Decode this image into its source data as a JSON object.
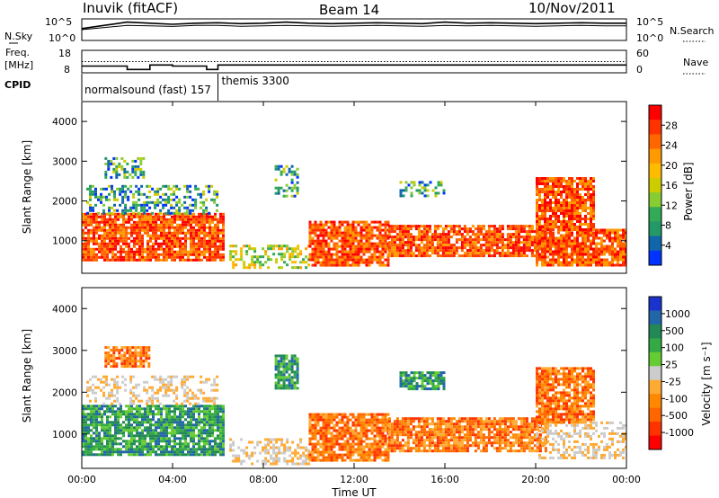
{
  "header": {
    "station": "Inuvik (fitACF)",
    "beam": "Beam 14",
    "date": "10/Nov/2011"
  },
  "chart_data": [
    {
      "type": "line",
      "name": "noise-panel",
      "left_label": "N.Sky",
      "right_label": "N.Search",
      "left_ticks": [
        "10^5",
        "10^0"
      ],
      "right_ticks": [
        "10^5",
        "10^0"
      ],
      "series": [
        {
          "name": "N.Sky",
          "style": "solid"
        },
        {
          "name": "N.Search",
          "style": "dotted"
        }
      ],
      "levels": {
        "N.Sky": [
          0.55,
          0.7,
          0.85,
          0.8,
          0.75,
          0.8,
          0.82,
          0.78,
          0.8,
          0.85,
          0.8,
          0.78,
          0.8,
          0.82,
          0.8,
          0.78,
          0.85,
          0.8,
          0.82,
          0.8,
          0.78,
          0.8,
          0.82,
          0.8,
          0.8
        ],
        "N.Search": [
          0.5,
          0.6,
          0.7,
          0.68,
          0.65,
          0.7,
          0.7,
          0.66,
          0.68,
          0.7,
          0.68,
          0.66,
          0.68,
          0.7,
          0.68,
          0.66,
          0.7,
          0.68,
          0.7,
          0.68,
          0.66,
          0.68,
          0.7,
          0.68,
          0.68
        ]
      }
    },
    {
      "type": "line",
      "name": "freq-nave-panel",
      "left_label_1": "Freq.",
      "left_label_2": "[MHz]",
      "right_label": "Nave",
      "left_ticks": [
        "18",
        "8"
      ],
      "right_ticks": [
        "60",
        "0"
      ],
      "xlim": [
        0,
        24
      ],
      "freq": [
        {
          "x": 0.0,
          "y": 11.0
        },
        {
          "x": 2.0,
          "y": 11.0
        },
        {
          "x": 2.0,
          "y": 9.5
        },
        {
          "x": 3.0,
          "y": 9.5
        },
        {
          "x": 3.0,
          "y": 11.5
        },
        {
          "x": 4.0,
          "y": 11.5
        },
        {
          "x": 4.0,
          "y": 11.0
        },
        {
          "x": 5.5,
          "y": 11.0
        },
        {
          "x": 5.5,
          "y": 9.5
        },
        {
          "x": 6.0,
          "y": 9.5
        },
        {
          "x": 6.0,
          "y": 11.5
        },
        {
          "x": 24.0,
          "y": 11.5
        }
      ],
      "nave": [
        {
          "x": 0.0,
          "y": 30
        },
        {
          "x": 24.0,
          "y": 30
        }
      ]
    },
    {
      "type": "label-track",
      "name": "cpid-track",
      "label": "CPID",
      "programs": [
        {
          "name": "normalsound (fast) 157",
          "start": 0.0
        },
        {
          "name": "themis 3300",
          "start": 6.0
        }
      ]
    },
    {
      "type": "heatmap",
      "name": "power-panel",
      "ylabel": "Slant Range [km]",
      "yticks": [
        "4000",
        "3000",
        "2000",
        "1000"
      ],
      "ylim": [
        180,
        4500
      ],
      "xlim": [
        0,
        24
      ],
      "colorbar": {
        "label": "Power [dB]",
        "ticks": [
          "28",
          "24",
          "20",
          "16",
          "12",
          "8",
          "4"
        ],
        "colors": [
          "#ff0000",
          "#ff3300",
          "#ff6600",
          "#ff9900",
          "#ffbb00",
          "#cccc00",
          "#88cc33",
          "#33aa55",
          "#229966",
          "#1166aa",
          "#0033ff"
        ]
      },
      "regions": [
        {
          "t0": 0.0,
          "t1": 6.2,
          "r0": 500,
          "r1": 1700,
          "level": "high"
        },
        {
          "t0": 0.2,
          "t1": 6.0,
          "r0": 1700,
          "r1": 2400,
          "level": "low"
        },
        {
          "t0": 1.0,
          "t1": 3.0,
          "r0": 2600,
          "r1": 3100,
          "level": "low"
        },
        {
          "t0": 6.5,
          "t1": 10.0,
          "r0": 300,
          "r1": 900,
          "level": "mid"
        },
        {
          "t0": 8.5,
          "t1": 9.5,
          "r0": 2100,
          "r1": 2900,
          "level": "low"
        },
        {
          "t0": 10.0,
          "t1": 13.5,
          "r0": 400,
          "r1": 1500,
          "level": "high"
        },
        {
          "t0": 13.5,
          "t1": 20.5,
          "r0": 600,
          "r1": 1400,
          "level": "high"
        },
        {
          "t0": 14.0,
          "t1": 16.0,
          "r0": 2100,
          "r1": 2500,
          "level": "low"
        },
        {
          "t0": 20.0,
          "t1": 24.0,
          "r0": 400,
          "r1": 1300,
          "level": "high"
        },
        {
          "t0": 20.0,
          "t1": 22.5,
          "r0": 1300,
          "r1": 2600,
          "level": "high"
        }
      ]
    },
    {
      "type": "heatmap",
      "name": "velocity-panel",
      "ylabel": "Slant Range [km]",
      "yticks": [
        "4000",
        "3000",
        "2000",
        "1000"
      ],
      "ylim": [
        180,
        4500
      ],
      "xlim": [
        0,
        24
      ],
      "xticks": [
        "00:00",
        "04:00",
        "08:00",
        "12:00",
        "16:00",
        "20:00",
        "00:00"
      ],
      "xlabel": "Time UT",
      "colorbar": {
        "label": "Velocity [m s⁻¹]",
        "ticks": [
          "1000",
          "500",
          "100",
          "25",
          "-25",
          "-100",
          "-500",
          "-1000"
        ],
        "colors": [
          "#1a33cc",
          "#2266aa",
          "#228855",
          "#33aa44",
          "#66cc33",
          "#cccccc",
          "#ffaa33",
          "#ff8800",
          "#ff6600",
          "#ff3300",
          "#ff0000"
        ]
      },
      "regions": [
        {
          "t0": 0.0,
          "t1": 6.2,
          "r0": 500,
          "r1": 1700,
          "level": "toward"
        },
        {
          "t0": 0.2,
          "t1": 6.0,
          "r0": 1700,
          "r1": 2400,
          "level": "zero"
        },
        {
          "t0": 1.0,
          "t1": 3.0,
          "r0": 2600,
          "r1": 3100,
          "level": "away"
        },
        {
          "t0": 6.5,
          "t1": 10.0,
          "r0": 300,
          "r1": 900,
          "level": "zero"
        },
        {
          "t0": 8.5,
          "t1": 9.5,
          "r0": 2100,
          "r1": 2900,
          "level": "toward"
        },
        {
          "t0": 10.0,
          "t1": 13.5,
          "r0": 400,
          "r1": 1500,
          "level": "away"
        },
        {
          "t0": 13.5,
          "t1": 20.5,
          "r0": 600,
          "r1": 1400,
          "level": "away"
        },
        {
          "t0": 14.0,
          "t1": 16.0,
          "r0": 2100,
          "r1": 2500,
          "level": "toward"
        },
        {
          "t0": 20.0,
          "t1": 24.0,
          "r0": 400,
          "r1": 1300,
          "level": "zero"
        },
        {
          "t0": 20.0,
          "t1": 22.5,
          "r0": 1300,
          "r1": 2600,
          "level": "away"
        }
      ]
    }
  ]
}
